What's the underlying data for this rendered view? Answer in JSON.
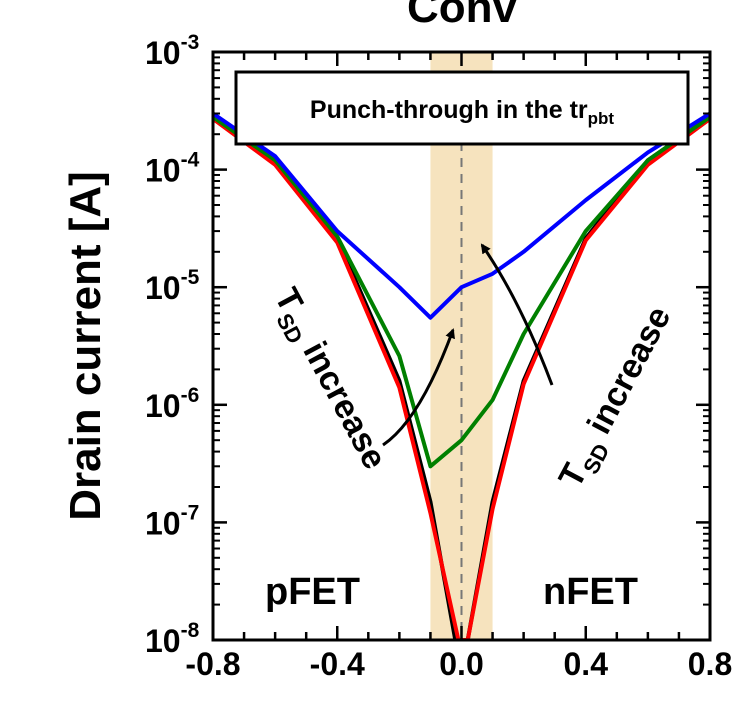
{
  "chart_data": {
    "type": "line",
    "title": "Conv",
    "ylabel": "Drain current [A]",
    "xlabel": "",
    "xlim": [
      -0.8,
      0.8
    ],
    "ylim": [
      1e-08,
      0.001
    ],
    "yscale": "log",
    "x_ticks": [
      "-0.8",
      "-0.4",
      "0.0",
      "0.4",
      "0.8"
    ],
    "y_ticks": [
      {
        "base": "10",
        "exp": "-3"
      },
      {
        "base": "10",
        "exp": "-4"
      },
      {
        "base": "10",
        "exp": "-5"
      },
      {
        "base": "10",
        "exp": "-6"
      },
      {
        "base": "10",
        "exp": "-7"
      },
      {
        "base": "10",
        "exp": "-8"
      }
    ],
    "highlight_band": {
      "x": [
        -0.1,
        0.1
      ],
      "color": "#f5deb3"
    },
    "reference_line": {
      "x": 0.0,
      "style": "dashed"
    },
    "series": [
      {
        "color": "#000000",
        "points": [
          [
            -0.8,
            0.00028
          ],
          [
            -0.6,
            0.00012
          ],
          [
            -0.4,
            2.6e-05
          ],
          [
            -0.2,
            1.6e-06
          ],
          [
            -0.1,
            1.5e-07
          ],
          [
            -0.02,
            1e-08
          ],
          [
            0.02,
            1e-08
          ],
          [
            0.1,
            1.5e-07
          ],
          [
            0.2,
            1.6e-06
          ],
          [
            0.4,
            2.6e-05
          ],
          [
            0.6,
            0.00012
          ],
          [
            0.8,
            0.00028
          ]
        ]
      },
      {
        "color": "#ff0000",
        "points": [
          [
            -0.8,
            0.00027
          ],
          [
            -0.6,
            0.00011
          ],
          [
            -0.4,
            2.4e-05
          ],
          [
            -0.2,
            1.4e-06
          ],
          [
            -0.1,
            1.2e-07
          ],
          [
            -0.01,
            1e-08
          ],
          [
            0.02,
            1e-08
          ],
          [
            0.1,
            1.3e-07
          ],
          [
            0.2,
            1.5e-06
          ],
          [
            0.4,
            2.5e-05
          ],
          [
            0.6,
            0.00011
          ],
          [
            0.8,
            0.00027
          ]
        ]
      },
      {
        "color": "#008000",
        "points": [
          [
            -0.8,
            0.00028
          ],
          [
            -0.6,
            0.00012
          ],
          [
            -0.4,
            2.7e-05
          ],
          [
            -0.2,
            2.6e-06
          ],
          [
            -0.1,
            3e-07
          ],
          [
            0.0,
            5e-07
          ],
          [
            0.1,
            1.1e-06
          ],
          [
            0.2,
            4e-06
          ],
          [
            0.4,
            3e-05
          ],
          [
            0.6,
            0.00012
          ],
          [
            0.8,
            0.00028
          ]
        ]
      },
      {
        "color": "#0000ff",
        "points": [
          [
            -0.8,
            0.0003
          ],
          [
            -0.6,
            0.00013
          ],
          [
            -0.4,
            3e-05
          ],
          [
            -0.2,
            1e-05
          ],
          [
            -0.1,
            5.5e-06
          ],
          [
            0.0,
            1e-05
          ],
          [
            0.1,
            1.3e-05
          ],
          [
            0.2,
            2e-05
          ],
          [
            0.4,
            5.5e-05
          ],
          [
            0.6,
            0.00014
          ],
          [
            0.8,
            0.0003
          ]
        ]
      }
    ],
    "annotations": {
      "box_main": "Punch-through in the tr",
      "box_sub": "pbt",
      "left_T": "T",
      "left_sub": "SD",
      "left_rest": " increase",
      "right_T": "T",
      "right_sub": "SD",
      "right_rest": " increase",
      "pfet": "pFET",
      "nfet": "nFET"
    }
  }
}
